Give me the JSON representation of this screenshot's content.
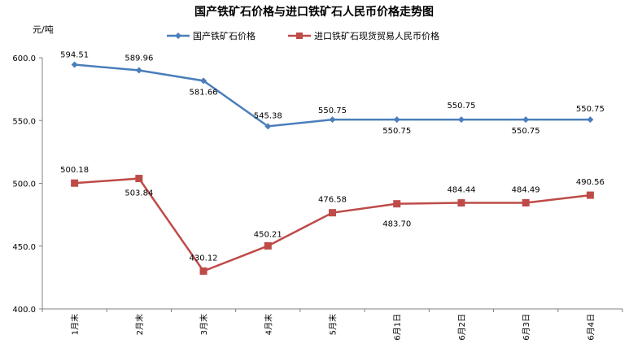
{
  "chart_data": {
    "type": "line",
    "title": "国产铁矿石价格与进口铁矿石人民币价格走势图",
    "ylabel": "元/吨",
    "ylim": [
      400,
      600
    ],
    "yticks": [
      "400.0",
      "450.0",
      "500.0",
      "550.0",
      "600.0"
    ],
    "categories": [
      "1月末",
      "2月末",
      "3月末",
      "4月末",
      "5月末",
      "6月1日",
      "6月2日",
      "6月3日",
      "6月4日"
    ],
    "legend_position": "top",
    "series": [
      {
        "name": "国产铁矿石价格",
        "color": "#4a7ebb",
        "marker": "diamond",
        "values": [
          594.51,
          589.96,
          581.66,
          545.38,
          550.75,
          550.75,
          550.75,
          550.75,
          550.75
        ],
        "labels": [
          "594.51",
          "589.96",
          "581.66",
          "545.38",
          "550.75",
          "550.75",
          "550.75",
          "550.75",
          "550.75"
        ]
      },
      {
        "name": "进口铁矿石现货贸易人民币价格",
        "color": "#be4b48",
        "marker": "square",
        "values": [
          500.18,
          503.84,
          430.12,
          450.21,
          476.58,
          483.7,
          484.44,
          484.49,
          490.56
        ],
        "labels": [
          "500.18",
          "503.84",
          "430.12",
          "450.21",
          "476.58",
          "483.70",
          "484.44",
          "484.49",
          "490.56"
        ]
      }
    ]
  }
}
